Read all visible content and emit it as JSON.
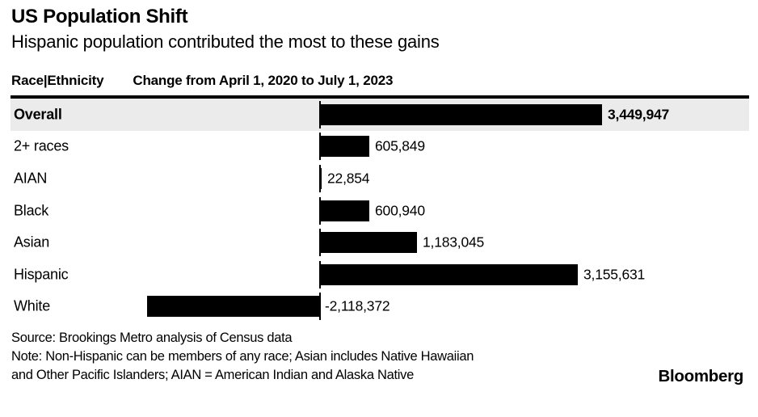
{
  "header": {
    "title": "US Population Shift",
    "subtitle": "Hispanic population contributed the most to these gains"
  },
  "table_header": {
    "col1": "Race|Ethnicity",
    "col2": "Change from April 1, 2020 to July 1, 2023"
  },
  "chart_data": {
    "type": "bar",
    "orientation": "horizontal",
    "title": "US Population Shift",
    "subtitle": "Hispanic population contributed the most to these gains",
    "categories": [
      "Overall",
      "2+ races",
      "AIAN",
      "Black",
      "Asian",
      "Hispanic",
      "White"
    ],
    "values": [
      3449947,
      605849,
      22854,
      600940,
      1183045,
      3155631,
      -2118372
    ],
    "value_labels": [
      "3,449,947",
      "605,849",
      "22,854",
      "600,940",
      "1,183,045",
      "3,155,631",
      "-2,118,372"
    ],
    "highlighted_category": "Overall",
    "baseline_at_zero": true,
    "grid": false,
    "value_labels_shown": true,
    "colors": {
      "bar": "#000000",
      "highlight_row_bg": "#ebebeb",
      "text": "#000000",
      "background": "#ffffff"
    }
  },
  "footer": {
    "source": "Source: Brookings Metro analysis of Census data",
    "note_line1": "Note: Non-Hispanic can be members of any race; Asian includes Native Hawaiian",
    "note_line2": "and Other Pacific Islanders; AIAN = American Indian and Alaska Native",
    "logo": "Bloomberg"
  }
}
